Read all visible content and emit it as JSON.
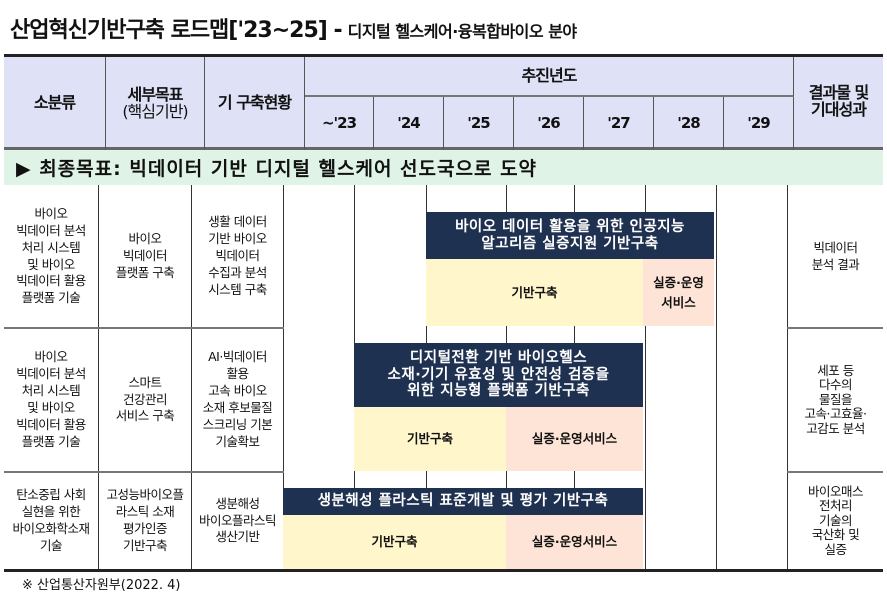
{
  "title": {
    "main": "산업혁신기반구축 로드맵['23~25] -",
    "sub": "디지털 헬스케어·융복합바이오 분야"
  },
  "header": {
    "col1": "소분류",
    "col2": "세부목표",
    "col2_sub": "(핵심기반)",
    "col3": "기 구축현황",
    "years_title": "추진년도",
    "years": [
      "~'23",
      "'24",
      "'25",
      "'26",
      "'27",
      "'28",
      "'29"
    ],
    "col_result": "결과물 및\n기대성과"
  },
  "goal": "▶ 최종목표: 빅데이터 기반 디지털 헬스케어 선도국으로 도약",
  "rows": [
    {
      "category": "바이오\n빅데이터 분석\n처리 시스템\n및 바이오\n빅데이터 활용\n플랫폼 기술",
      "target": "바이오\n빅데이터\n플랫폼 구축",
      "existing": "생활 데이터\n기반 바이오\n빅데이터\n수집과 분석\n시스템 구축",
      "bar": "바이오 데이터 활용을 위한 인공지능\n알고리즘 실증지원 기반구축",
      "phase1": "기반구축",
      "phase2": "실증·운영\n서비스",
      "result": "빅데이터\n분석 결과"
    },
    {
      "category": "바이오\n빅데이터 분석\n처리 시스템\n및 바이오\n빅데이터 활용\n플랫폼 기술",
      "target": "스마트\n건강관리\n서비스 구축",
      "existing": "AI·빅데이터\n활용\n고속 바이오\n소재 후보물질\n스크리닝 기본\n기술확보",
      "bar": "디지털전환 기반 바이오헬스\n소재·기기 유효성 및 안전성 검증을\n위한 지능형 플랫폼 기반구축",
      "phase1": "기반구축",
      "phase2": "실증·운영서비스",
      "result": "세포 등\n다수의\n물질을\n고속·고효율·\n고감도 분석"
    },
    {
      "category": "탄소중립 사회\n실현을 위한\n바이오화학소재\n기술",
      "target": "고성능바이오플\n라스틱 소재\n평가인증\n기반구축",
      "existing": "생분해성\n바이오플라스틱\n생산기반",
      "bar": "생분해성 플라스틱 표준개발 및 평가 기반구축",
      "phase1": "기반구축",
      "phase2": "실증·운영서비스",
      "result": "바이오매스\n전처리\n기술의\n국산화 및\n실증"
    }
  ],
  "footer": "※ 산업통산자원부(2022. 4)",
  "colors": {
    "header_bg": "#dfe2f6",
    "goal_bg": "#dff3e6",
    "bar": "#1f3150",
    "phase1": "#fff6cc",
    "phase2": "#fde4d6"
  }
}
